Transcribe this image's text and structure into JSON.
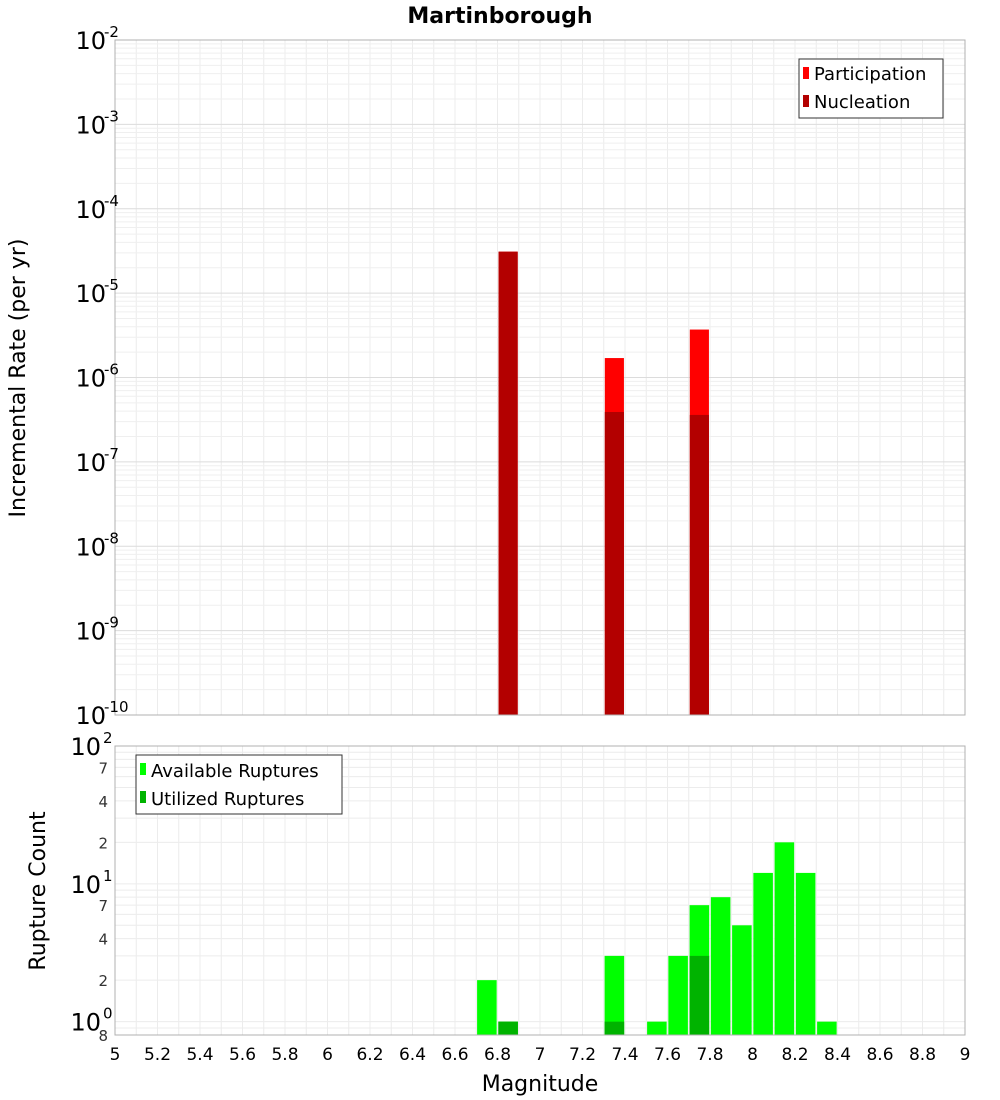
{
  "chart_data": [
    {
      "type": "bar",
      "title": "Martinborough",
      "ylabel": "Incremental Rate (per yr)",
      "xlabel": "",
      "y_scale": "log",
      "ylim": [
        1e-10,
        0.01
      ],
      "xlim": [
        5,
        9
      ],
      "bar_width": 0.1,
      "grid": true,
      "legend_position": "top-right",
      "y_ticks": [
        {
          "base": "10",
          "exp": "-2",
          "value": 0.01
        },
        {
          "base": "10",
          "exp": "-3",
          "value": 0.001
        },
        {
          "base": "10",
          "exp": "-4",
          "value": 0.0001
        },
        {
          "base": "10",
          "exp": "-5",
          "value": 1e-05
        },
        {
          "base": "10",
          "exp": "-6",
          "value": 1e-06
        },
        {
          "base": "10",
          "exp": "-7",
          "value": 1e-07
        },
        {
          "base": "10",
          "exp": "-8",
          "value": 1e-08
        },
        {
          "base": "10",
          "exp": "-9",
          "value": 1e-09
        },
        {
          "base": "10",
          "exp": "-10",
          "value": 1e-10
        }
      ],
      "series": [
        {
          "name": "Participation",
          "color": "#ff0000",
          "points": [
            {
              "x": 6.85,
              "y": 3.1e-05
            },
            {
              "x": 7.35,
              "y": 1.7e-06
            },
            {
              "x": 7.75,
              "y": 3.7e-06
            }
          ]
        },
        {
          "name": "Nucleation",
          "color": "#b30000",
          "points": [
            {
              "x": 6.85,
              "y": 3.1e-05
            },
            {
              "x": 7.35,
              "y": 3.9e-07
            },
            {
              "x": 7.75,
              "y": 3.6e-07
            }
          ]
        }
      ]
    },
    {
      "type": "bar",
      "title": "",
      "ylabel": "Rupture Count",
      "xlabel": "Magnitude",
      "y_scale": "log",
      "ylim": [
        0.8,
        100
      ],
      "xlim": [
        5,
        9
      ],
      "bar_width": 0.1,
      "grid": true,
      "legend_position": "top-left",
      "x_ticks": [
        "5",
        "5.2",
        "5.4",
        "5.6",
        "5.8",
        "6",
        "6.2",
        "6.4",
        "6.6",
        "6.8",
        "7",
        "7.2",
        "7.4",
        "7.6",
        "7.8",
        "8",
        "8.2",
        "8.4",
        "8.6",
        "8.8",
        "9"
      ],
      "y_major_ticks": [
        {
          "base": "10",
          "exp": "2",
          "value": 100
        },
        {
          "base": "10",
          "exp": "1",
          "value": 10
        },
        {
          "base": "10",
          "exp": "0",
          "value": 1
        }
      ],
      "y_minor_ticks": [
        {
          "label": "7",
          "value": 70
        },
        {
          "label": "4",
          "value": 40
        },
        {
          "label": "2",
          "value": 20
        },
        {
          "label": "7",
          "value": 7
        },
        {
          "label": "4",
          "value": 4
        },
        {
          "label": "2",
          "value": 2
        },
        {
          "label": "8",
          "value": 0.8
        }
      ],
      "series": [
        {
          "name": "Available Ruptures",
          "color": "#00ff00",
          "points": [
            {
              "x": 6.75,
              "y": 2
            },
            {
              "x": 6.85,
              "y": 1
            },
            {
              "x": 7.35,
              "y": 3
            },
            {
              "x": 7.55,
              "y": 1
            },
            {
              "x": 7.65,
              "y": 3
            },
            {
              "x": 7.75,
              "y": 7
            },
            {
              "x": 7.85,
              "y": 8
            },
            {
              "x": 7.95,
              "y": 5
            },
            {
              "x": 8.05,
              "y": 12
            },
            {
              "x": 8.15,
              "y": 20
            },
            {
              "x": 8.25,
              "y": 12
            },
            {
              "x": 8.35,
              "y": 1
            }
          ]
        },
        {
          "name": "Utilized Ruptures",
          "color": "#00b300",
          "points": [
            {
              "x": 6.85,
              "y": 1
            },
            {
              "x": 7.35,
              "y": 1
            },
            {
              "x": 7.75,
              "y": 3
            }
          ]
        }
      ]
    }
  ]
}
